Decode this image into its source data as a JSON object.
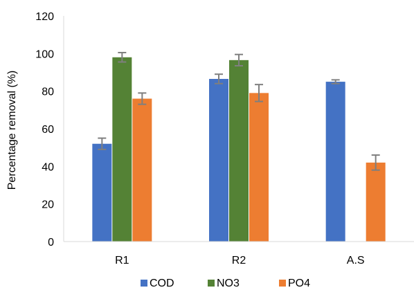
{
  "chart_data": {
    "type": "bar",
    "title": "",
    "xlabel": "",
    "ylabel": "Percentage removal (%)",
    "ylim": [
      0,
      120
    ],
    "yticks": [
      0,
      20,
      40,
      60,
      80,
      100,
      120
    ],
    "grid": false,
    "legend_position": "bottom",
    "categories": [
      "R1",
      "R2",
      "A.S"
    ],
    "series": [
      {
        "name": "COD",
        "color": "#4472C4",
        "values": [
          52,
          86.5,
          85
        ],
        "errors": [
          3,
          2.5,
          1
        ]
      },
      {
        "name": "NO3",
        "color": "#548235",
        "values": [
          98,
          96.5,
          null
        ],
        "errors": [
          2.5,
          3,
          null
        ]
      },
      {
        "name": "PO4",
        "color": "#ED7D31",
        "values": [
          76,
          79,
          42
        ],
        "errors": [
          3,
          4.5,
          4
        ]
      }
    ],
    "error_bar_color": "#7F7F7F"
  }
}
